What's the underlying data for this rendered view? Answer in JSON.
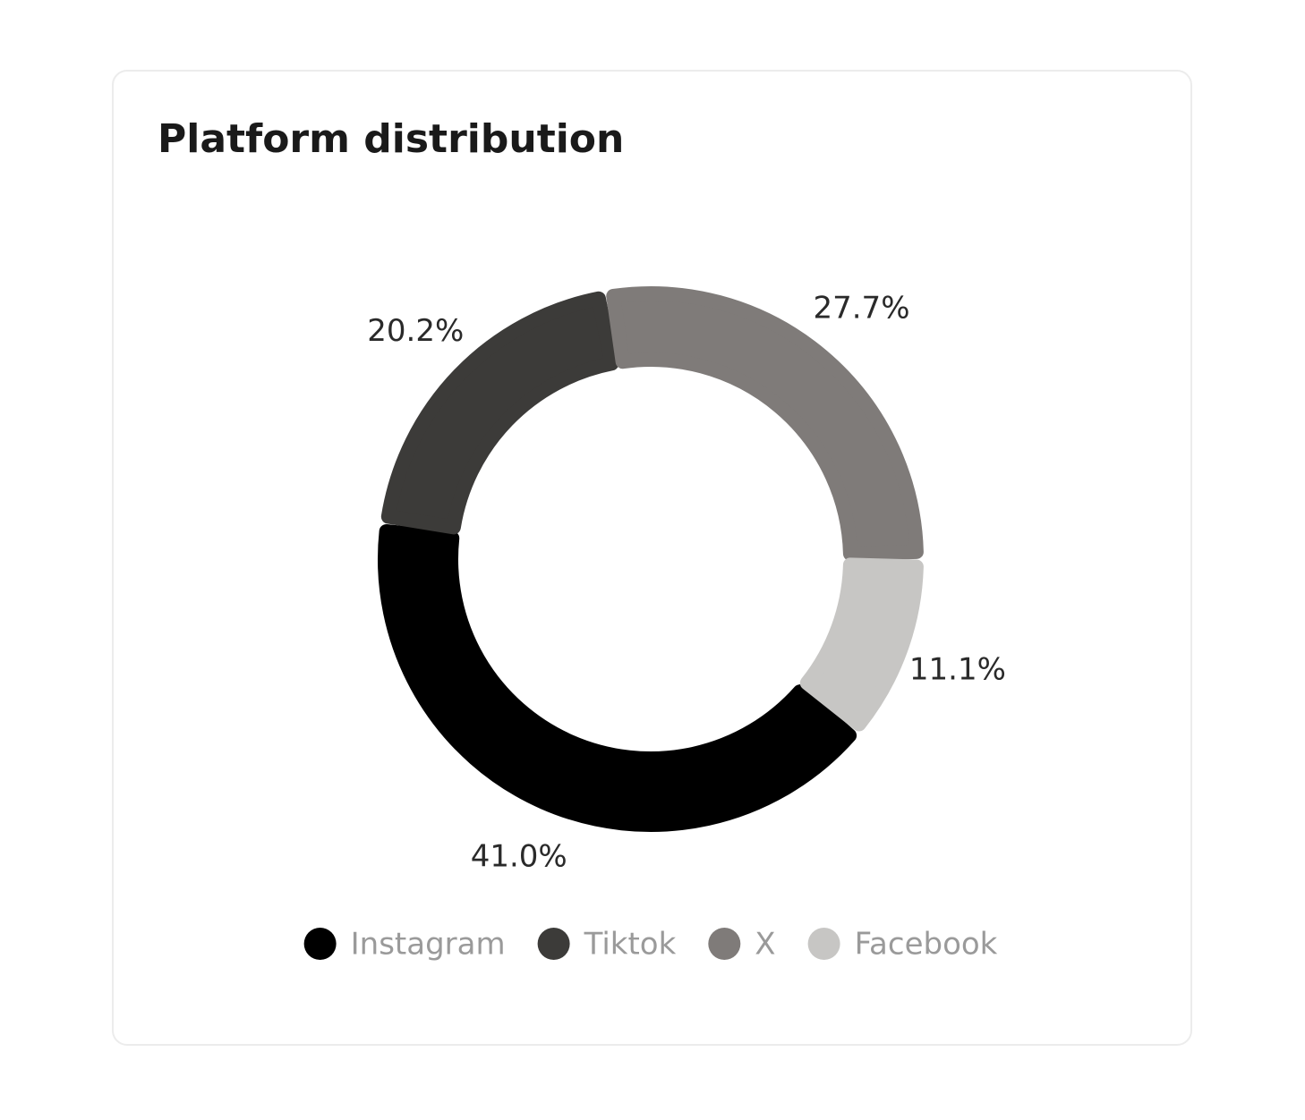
{
  "chart_data": {
    "type": "donut",
    "title": "Platform distribution",
    "categories": [
      "Instagram",
      "Tiktok",
      "X",
      "Facebook"
    ],
    "values": [
      41.0,
      20.2,
      27.7,
      11.1
    ],
    "value_labels": [
      "41.0%",
      "20.2%",
      "27.7%",
      "11.1%"
    ],
    "colors": [
      "#000000",
      "#3c3b39",
      "#7f7b79",
      "#c7c6c4"
    ],
    "legend": "bottom"
  }
}
